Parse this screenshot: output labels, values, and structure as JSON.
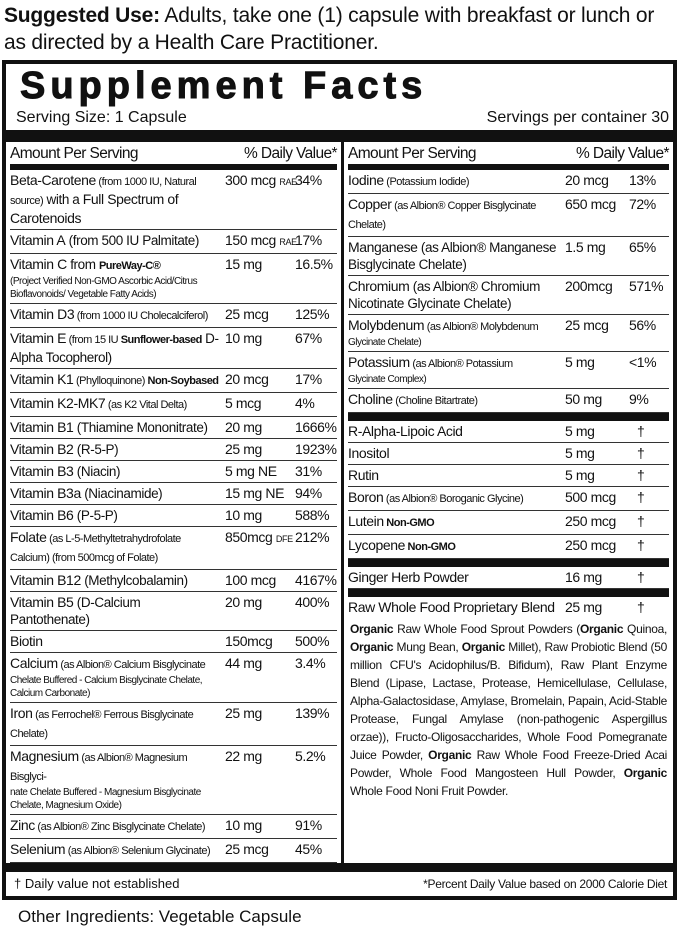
{
  "suggested_use": {
    "label": "Suggested Use:",
    "text": " Adults, take one (1) capsule with breakfast or lunch or as directed by a Health Care Practitioner."
  },
  "title": "Supplement Facts",
  "serving_size": "Serving Size: 1 Capsule",
  "servings_per_container": "Servings per container 30",
  "header": {
    "amount": "Amount Per Serving",
    "dv": "% Daily Value*"
  },
  "left_rows": [
    {
      "parts": [
        {
          "t": "Beta-Carotene",
          "s": "n"
        },
        {
          "t": " (from 1000 IU, Natural source)",
          "s": "d"
        },
        {
          "t": " with a ",
          "s": "n2"
        },
        {
          "t": "Full Spectrum of Carotenoids",
          "s": "n"
        }
      ],
      "amount": "300 mcg",
      "unit": "RAE",
      "dv": "34%"
    },
    {
      "parts": [
        {
          "t": "Vitamin A",
          "s": "n"
        },
        {
          "t": " (from 500 IU Palmitate)",
          "s": "n2"
        }
      ],
      "amount": "150 mcg",
      "unit": "RAE",
      "dv": "17%"
    },
    {
      "parts": [
        {
          "t": "Vitamin C",
          "s": "n"
        },
        {
          "t": "  from ",
          "s": "n2"
        },
        {
          "t": "PureWay-C®",
          "s": "b"
        },
        {
          "t": "(Project Verified Non-GMO Ascorbic Acid/Citrus Bioflavonoids/ Vegetable Fatty Acids)",
          "s": "l"
        }
      ],
      "amount": "15 mg",
      "dv": "16.5%"
    },
    {
      "parts": [
        {
          "t": "Vitamin D3",
          "s": "n"
        },
        {
          "t": " (from 1000 IU Cholecalciferol)",
          "s": "d"
        }
      ],
      "amount": "25 mcg",
      "dv": "125%"
    },
    {
      "parts": [
        {
          "t": "Vitamin E",
          "s": "n"
        },
        {
          "t": "  (from 15 IU ",
          "s": "d"
        },
        {
          "t": "Sunflower-based",
          "s": "b"
        },
        {
          "t": " D-Alpha Tocopherol)",
          "s": "n2"
        }
      ],
      "amount": "10 mg",
      "dv": "67%"
    },
    {
      "parts": [
        {
          "t": "Vitamin K1",
          "s": "n"
        },
        {
          "t": " (Phylloquinone) ",
          "s": "d"
        },
        {
          "t": "Non-Soybased",
          "s": "b"
        }
      ],
      "amount": "20 mcg",
      "dv": "17%"
    },
    {
      "parts": [
        {
          "t": "Vitamin K2-MK7",
          "s": "n"
        },
        {
          "t": " (as K2 Vital Delta)",
          "s": "d"
        }
      ],
      "amount": "5 mcg",
      "dv": "4%"
    },
    {
      "parts": [
        {
          "t": "Vitamin B1",
          "s": "n"
        },
        {
          "t": " (Thiamine Mononitrate)",
          "s": "n2"
        }
      ],
      "amount": "20 mg",
      "dv": "1666%"
    },
    {
      "parts": [
        {
          "t": "Vitamin B2",
          "s": "n"
        },
        {
          "t": " (R-5-P)",
          "s": "n2"
        }
      ],
      "amount": "25 mg",
      "dv": "1923%"
    },
    {
      "parts": [
        {
          "t": "Vitamin B3",
          "s": "n"
        },
        {
          "t": " (Niacin)",
          "s": "n2"
        }
      ],
      "amount": "5 mg NE",
      "dv": "31%"
    },
    {
      "parts": [
        {
          "t": "Vitamin B3a",
          "s": "n"
        },
        {
          "t": " (Niacinamide)",
          "s": "n2"
        }
      ],
      "amount": "15 mg NE",
      "dv": "94%"
    },
    {
      "parts": [
        {
          "t": "Vitamin B6",
          "s": "n"
        },
        {
          "t": " (P-5-P)",
          "s": "n2"
        }
      ],
      "amount": "10 mg",
      "dv": "588%"
    },
    {
      "parts": [
        {
          "t": "Folate",
          "s": "n"
        },
        {
          "t": " (as L-5-Methyltetrahydrofolate Calcium)",
          "s": "d"
        },
        {
          "t": " (from 500mcg of Folate)",
          "s": "d"
        }
      ],
      "amount": "850mcg",
      "unit": "DFE",
      "dv": "212%"
    },
    {
      "parts": [
        {
          "t": "Vitamin B12",
          "s": "n"
        },
        {
          "t": " (Methylcobalamin)",
          "s": "n2"
        }
      ],
      "amount": "100 mcg",
      "dv": "4167%"
    },
    {
      "parts": [
        {
          "t": "Vitamin B5",
          "s": "n"
        },
        {
          "t": " (D-Calcium Pantothenate)",
          "s": "n2"
        }
      ],
      "amount": "20 mg",
      "dv": "400%"
    },
    {
      "parts": [
        {
          "t": "Biotin",
          "s": "n"
        }
      ],
      "amount": "150mcg",
      "dv": "500%"
    },
    {
      "parts": [
        {
          "t": "Calcium",
          "s": "n"
        },
        {
          "t": " (as Albion® Calcium Bisglycinate",
          "s": "d"
        },
        {
          "t": "Chelate Buffered - Calcium Bisglycinate Chelate, Calcium Carbonate)",
          "s": "l"
        }
      ],
      "amount": "44 mg",
      "dv": "3.4%"
    },
    {
      "parts": [
        {
          "t": "Iron",
          "s": "n"
        },
        {
          "t": " (as Ferrochel® Ferrous Bisglycinate Chelate)",
          "s": "d"
        }
      ],
      "amount": "25 mg",
      "dv": "139%"
    },
    {
      "parts": [
        {
          "t": "Magnesium",
          "s": "n"
        },
        {
          "t": " (as Albion® Magnesium Bisglyci-",
          "s": "d"
        },
        {
          "t": "nate Chelate Buffered - Magnesium Bisglycinate Chelate, Magnesium Oxide)",
          "s": "l"
        }
      ],
      "amount": "22 mg",
      "dv": "5.2%"
    },
    {
      "parts": [
        {
          "t": "Zinc",
          "s": "n"
        },
        {
          "t": " (as Albion® Zinc Bisglycinate Chelate)",
          "s": "d"
        }
      ],
      "amount": "10 mg",
      "dv": "91%"
    },
    {
      "parts": [
        {
          "t": "Selenium",
          "s": "n"
        },
        {
          "t": " (as Albion® Selenium Glycinate)",
          "s": "d"
        }
      ],
      "amount": "25 mcg",
      "dv": "45%"
    }
  ],
  "right_rows": [
    {
      "parts": [
        {
          "t": "Iodine",
          "s": "n"
        },
        {
          "t": " (Potassium Iodide)",
          "s": "d"
        }
      ],
      "amount": "20 mcg",
      "dv": "13%"
    },
    {
      "parts": [
        {
          "t": "Copper",
          "s": "n"
        },
        {
          "t": " (as Albion® Copper Bisglycinate Chelate)",
          "s": "d"
        }
      ],
      "amount": "650 mcg",
      "dv": "72%"
    },
    {
      "parts": [
        {
          "t": "Manganese",
          "s": "n"
        },
        {
          "t": " (as Albion® Manganese Bisglycinate Chelate)",
          "s": "n2"
        }
      ],
      "amount": "1.5 mg",
      "dv": "65%"
    },
    {
      "parts": [
        {
          "t": "Chromium",
          "s": "n"
        },
        {
          "t": " (as Albion® Chromium Nicotinate Glycinate Chelate)",
          "s": "n2"
        }
      ],
      "amount": "200mcg",
      "dv": "571%"
    },
    {
      "parts": [
        {
          "t": "Molybdenum",
          "s": "n"
        },
        {
          "t": " (as Albion® Molybdenum",
          "s": "d"
        },
        {
          "t": "Glycinate Chelate)",
          "s": "l"
        }
      ],
      "amount": "25 mcg",
      "dv": "56%"
    },
    {
      "parts": [
        {
          "t": "Potassium",
          "s": "n"
        },
        {
          "t": " (as Albion® Potassium",
          "s": "d"
        },
        {
          "t": "Glycinate Complex)",
          "s": "l"
        }
      ],
      "amount": "5 mg",
      "dv": "<1%"
    },
    {
      "parts": [
        {
          "t": "Choline",
          "s": "n"
        },
        {
          "t": " (Choline Bitartrate)",
          "s": "d"
        }
      ],
      "amount": "50 mg",
      "dv": "9%",
      "bar_after": true
    },
    {
      "parts": [
        {
          "t": "R-Alpha-Lipoic Acid",
          "s": "n"
        }
      ],
      "amount": "5 mg",
      "dv": "†"
    },
    {
      "parts": [
        {
          "t": "Inositol",
          "s": "n"
        }
      ],
      "amount": "5 mg",
      "dv": "†"
    },
    {
      "parts": [
        {
          "t": "Rutin",
          "s": "n"
        }
      ],
      "amount": "5 mg",
      "dv": "†"
    },
    {
      "parts": [
        {
          "t": "Boron",
          "s": "n"
        },
        {
          "t": " (as Albion® Boroganic Glycine)",
          "s": "d"
        }
      ],
      "amount": "500 mcg",
      "dv": "†"
    },
    {
      "parts": [
        {
          "t": "Lutein",
          "s": "n"
        },
        {
          "t": "  Non-GMO",
          "s": "b"
        }
      ],
      "amount": "250 mcg",
      "dv": "†"
    },
    {
      "parts": [
        {
          "t": "Lycopene",
          "s": "n"
        },
        {
          "t": "  Non-GMO",
          "s": "b"
        }
      ],
      "amount": "250 mcg",
      "dv": "†",
      "bar_after": true
    },
    {
      "parts": [
        {
          "t": "Ginger Herb Powder",
          "s": "n"
        }
      ],
      "amount": "16 mg",
      "dv": "†",
      "bar_after": true
    },
    {
      "parts": [
        {
          "t": "Raw Whole Food Proprietary Blend",
          "s": "n"
        }
      ],
      "amount": "25 mg",
      "dv": "†",
      "noline": true
    }
  ],
  "blend": [
    {
      "t": "Organic",
      "b": true
    },
    {
      "t": " Raw Whole Food Sprout Powders ("
    },
    {
      "t": "Organic",
      "b": true
    },
    {
      "t": " Quinoa, "
    },
    {
      "t": "Organic",
      "b": true
    },
    {
      "t": " Mung Bean, "
    },
    {
      "t": "Organic",
      "b": true
    },
    {
      "t": " Millet), Raw Probiotic Blend (50 million CFU's Acidophilus/B. Bifidum), Raw Plant Enzyme Blend (Lipase, Lactase, Protease, Hemicellulase, Cellulase, Alpha-Galactosidase, Amylase, Bromelain, Papain, Acid-Stable Protease, Fungal Amylase (non-pathogenic Aspergillus orzae)), Fructo-Oligosaccharides, Whole Food Pomegranate Juice Powder, "
    },
    {
      "t": "Organic",
      "b": true
    },
    {
      "t": " Raw Whole Food Freeze-Dried Acai Powder, Whole Food Mangosteen Hull Powder, "
    },
    {
      "t": "Organic",
      "b": true
    },
    {
      "t": " Whole Food Noni Fruit Powder."
    }
  ],
  "footer": {
    "dagger": "† Daily value not established",
    "percent": "*Percent Daily Value based on 2000 Calorie Diet"
  },
  "other_ingredients": "Other Ingredients: Vegetable Capsule"
}
